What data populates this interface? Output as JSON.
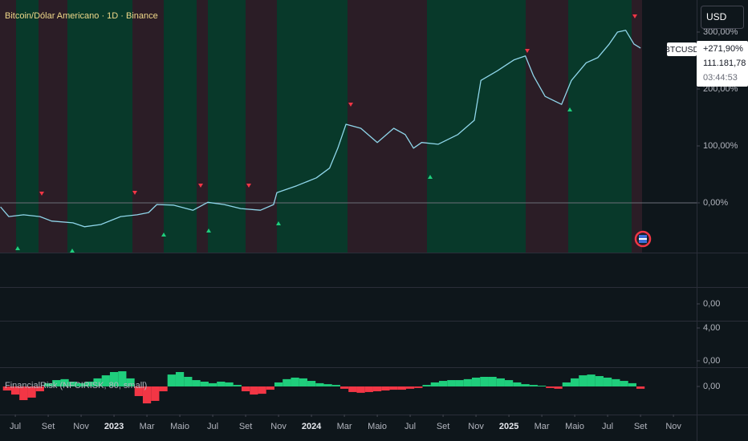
{
  "chart_data": [
    {
      "type": "line",
      "title": "Bitcoin/Dólar Americano · 1D · Binance",
      "currency": "USD",
      "x": [
        -0.9,
        -0.4,
        0.5,
        1.5,
        2.2,
        3.5,
        4.2,
        5.2,
        6.4,
        7.4,
        8.1,
        8.6,
        9.6,
        10.8,
        11.7,
        12.7,
        13.7,
        14.9,
        15.7,
        15.9,
        17.1,
        18.3,
        19.1,
        19.6,
        20.1,
        21.0,
        22.0,
        23.0,
        23.7,
        24.2,
        24.7,
        25.7,
        26.9,
        27.9,
        28.3,
        29.3,
        30.3,
        31.0,
        31.5,
        32.2,
        33.2,
        33.8,
        34.7,
        35.4,
        36.1,
        36.6,
        37.1,
        37.6,
        38.0
      ],
      "series": [
        {
          "name": "BTCUSD",
          "color": "#8fd6ea",
          "values": [
            -7,
            -24,
            -21,
            -24,
            -32,
            -35,
            -42,
            -38,
            -24,
            -21,
            -17,
            -3,
            -4,
            -13,
            1,
            -3,
            -10,
            -13,
            -3,
            18,
            30,
            44,
            61,
            96,
            138,
            131,
            106,
            131,
            120,
            96,
            106,
            103,
            120,
            145,
            215,
            232,
            251,
            258,
            223,
            187,
            173,
            215,
            246,
            255,
            279,
            300,
            303,
            279,
            271.9
          ],
          "last_value_label": "+271,90%",
          "price_label": "111.181,78",
          "countdown": "03:44:53"
        }
      ],
      "xlim": [
        -0.93,
        41.41
      ],
      "xticks": [
        {
          "value": 0,
          "label": "Jul"
        },
        {
          "value": 2,
          "label": "Set"
        },
        {
          "value": 4,
          "label": "Nov"
        },
        {
          "value": 6,
          "label": "2023"
        },
        {
          "value": 8,
          "label": "Mar"
        },
        {
          "value": 10,
          "label": "Maio"
        },
        {
          "value": 12,
          "label": "Jul"
        },
        {
          "value": 14,
          "label": "Set"
        },
        {
          "value": 16,
          "label": "Nov"
        },
        {
          "value": 18,
          "label": "2024"
        },
        {
          "value": 20,
          "label": "Mar"
        },
        {
          "value": 22,
          "label": "Maio"
        },
        {
          "value": 24,
          "label": "Jul"
        },
        {
          "value": 26,
          "label": "Set"
        },
        {
          "value": 28,
          "label": "Nov"
        },
        {
          "value": 30,
          "label": "2025"
        },
        {
          "value": 32,
          "label": "Mar"
        },
        {
          "value": 34,
          "label": "Maio"
        },
        {
          "value": 36,
          "label": "Jul"
        },
        {
          "value": 38,
          "label": "Set"
        },
        {
          "value": 40,
          "label": "Nov"
        }
      ],
      "ylim": [
        -87.3,
        356.3
      ],
      "yticks": [
        {
          "value": 0,
          "label": "0,00%"
        },
        {
          "value": 100,
          "label": "100,00%"
        },
        {
          "value": 200,
          "label": "200,00%"
        },
        {
          "value": 300,
          "label": "300,00%"
        }
      ]
    },
    {
      "type": "line",
      "series": [],
      "ylim": [
        -1,
        1
      ],
      "yticks": [
        {
          "value": 0,
          "label": "0,00"
        }
      ]
    },
    {
      "type": "line",
      "series": [],
      "ylim": [
        -0.78,
        4.88
      ],
      "yticks": [
        {
          "value": 4,
          "label": "4,00"
        },
        {
          "value": 0,
          "label": "0,00"
        }
      ]
    },
    {
      "type": "histogram",
      "title": "FinancialRisk (NFCIRISK, 80, small)",
      "x": [
        -0.5,
        0,
        0.5,
        1,
        1.5,
        2,
        2.5,
        3,
        3.5,
        4,
        4.5,
        5,
        5.5,
        6,
        6.5,
        7,
        7.5,
        8,
        8.5,
        9,
        9.5,
        10,
        10.5,
        11,
        11.5,
        12,
        12.5,
        13,
        13.5,
        14,
        14.5,
        15,
        15.5,
        16,
        16.5,
        17,
        17.5,
        18,
        18.5,
        19,
        19.5,
        20,
        20.5,
        21,
        21.5,
        22,
        22.5,
        23,
        23.5,
        24,
        24.5,
        25,
        25.5,
        26,
        26.5,
        27,
        27.5,
        28,
        28.5,
        29,
        29.5,
        30,
        30.5,
        31,
        31.5,
        32,
        32.5,
        33,
        33.5,
        34,
        34.5,
        35,
        35.5,
        36,
        36.5,
        37,
        37.5,
        38
      ],
      "series": [
        {
          "name": "FinancialRisk",
          "up_color": "#1fce7c",
          "down_color": "#f23645",
          "values": [
            -0.21,
            -0.42,
            -0.71,
            -0.58,
            -0.25,
            0.17,
            0.33,
            0.38,
            0.25,
            0.17,
            0.25,
            0.42,
            0.58,
            0.75,
            0.79,
            0.42,
            -0.5,
            -0.88,
            -0.75,
            -0.25,
            0.62,
            0.75,
            0.5,
            0.33,
            0.25,
            0.17,
            0.25,
            0.21,
            0.08,
            -0.25,
            -0.42,
            -0.38,
            -0.17,
            0.21,
            0.38,
            0.46,
            0.42,
            0.29,
            0.17,
            0.12,
            0.08,
            -0.12,
            -0.29,
            -0.33,
            -0.29,
            -0.25,
            -0.21,
            -0.17,
            -0.17,
            -0.12,
            -0.08,
            0.08,
            0.21,
            0.29,
            0.33,
            0.33,
            0.38,
            0.46,
            0.5,
            0.5,
            0.42,
            0.33,
            0.21,
            0.12,
            0.08,
            0.04,
            -0.08,
            -0.12,
            0.21,
            0.42,
            0.58,
            0.62,
            0.54,
            0.46,
            0.38,
            0.29,
            0.17,
            -0.12
          ]
        }
      ],
      "ylim": [
        -1.46,
        1
      ],
      "yticks": [
        {
          "value": 0,
          "label": "0,00"
        }
      ]
    }
  ]
}
